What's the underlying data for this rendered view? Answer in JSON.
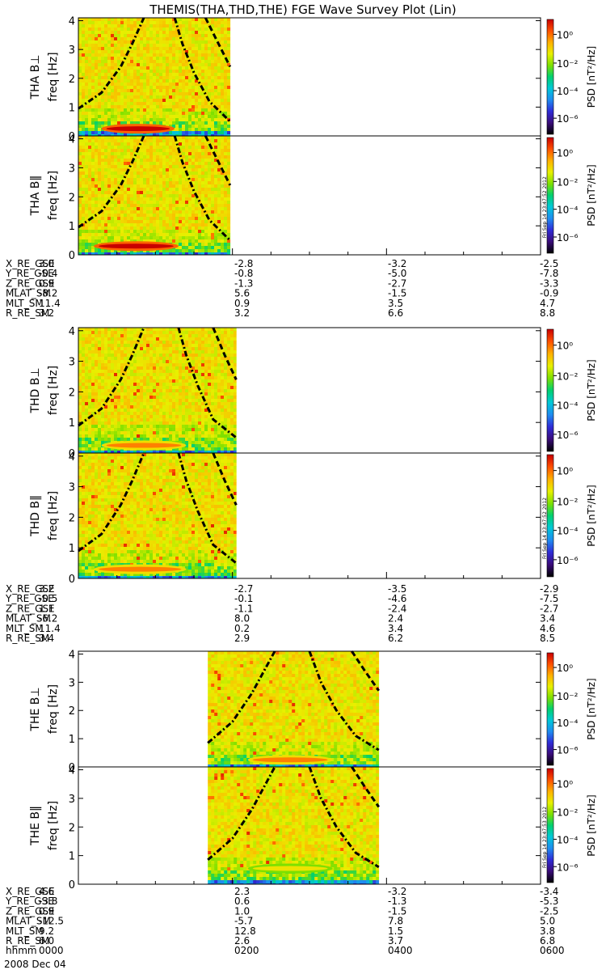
{
  "title": "THEMIS(THA,THD,THE) FGE Wave Survey Plot (Lin)",
  "colorbar": {
    "label": "PSD [nT²/Hz]",
    "ticks": [
      "10⁰",
      "10⁻²",
      "10⁻⁴",
      "10⁻⁶"
    ],
    "colors": [
      "#000000",
      "#3a0c7a",
      "#2f2bd6",
      "#1f8cf0",
      "#00c8d8",
      "#00d070",
      "#7ee000",
      "#e8f000",
      "#ffb000",
      "#ff5000",
      "#c80000"
    ],
    "stamps": [
      "Fri Sep 14 23:47:52 2012",
      "Fri Sep 14 23:47:52 2012",
      "Fri Sep 14 23:47:53 2012"
    ]
  },
  "panels": [
    {
      "label": "THA B⊥",
      "ylabel": "freq [Hz]",
      "yticks": [
        "0",
        "1",
        "2",
        "3",
        "4"
      ]
    },
    {
      "label": "THA B‖",
      "ylabel": "freq [Hz]",
      "yticks": [
        "0",
        "1",
        "2",
        "3",
        "4"
      ]
    },
    {
      "label": "THD B⊥",
      "ylabel": "freq [Hz]",
      "yticks": [
        "0",
        "1",
        "2",
        "3",
        "4"
      ]
    },
    {
      "label": "THD B‖",
      "ylabel": "freq [Hz]",
      "yticks": [
        "0",
        "1",
        "2",
        "3",
        "4"
      ]
    },
    {
      "label": "THE B⊥",
      "ylabel": "freq [Hz]",
      "yticks": [
        "0",
        "1",
        "2",
        "3",
        "4"
      ]
    },
    {
      "label": "THE B‖",
      "ylabel": "freq [Hz]",
      "yticks": [
        "0",
        "1",
        "2",
        "3",
        "4"
      ]
    }
  ],
  "orbit_blocks": [
    {
      "rows": [
        {
          "label": "X_RE_GSE",
          "values": [
            "3.0",
            "-2.8",
            "-3.2",
            "-2.5"
          ]
        },
        {
          "label": "Y_RE_GSE",
          "values": [
            "-0.4",
            "-0.8",
            "-5.0",
            "-7.8"
          ]
        },
        {
          "label": "Z_RE_GSE",
          "values": [
            "0.9",
            "-1.3",
            "-2.7",
            "-3.3"
          ]
        },
        {
          "label": "MLAT_SM",
          "values": [
            "-8.2",
            "5.6",
            "-1.5",
            "-0.9"
          ]
        },
        {
          "label": "MLT_SM",
          "values": [
            "11.4",
            "0.9",
            "3.5",
            "4.7"
          ]
        },
        {
          "label": "R_RE_SM",
          "values": [
            "3.2",
            "3.2",
            "6.6",
            "8.8"
          ]
        }
      ]
    },
    {
      "rows": [
        {
          "label": "X_RE_GSE",
          "values": [
            "3.2",
            "-2.7",
            "-3.5",
            "-2.9"
          ]
        },
        {
          "label": "Y_RE_GSE",
          "values": [
            "-0.5",
            "-0.1",
            "-4.6",
            "-7.5"
          ]
        },
        {
          "label": "Z_RE_GSE",
          "values": [
            "1.1",
            "-1.1",
            "-2.4",
            "-2.7"
          ]
        },
        {
          "label": "MLAT_SM",
          "values": [
            "-6.2",
            "8.0",
            "2.4",
            "3.4"
          ]
        },
        {
          "label": "MLT_SM",
          "values": [
            "11.4",
            "0.2",
            "3.4",
            "4.6"
          ]
        },
        {
          "label": "R_RE_SM",
          "values": [
            "3.4",
            "2.9",
            "6.2",
            "8.5"
          ]
        }
      ]
    },
    {
      "rows": [
        {
          "label": "X_RE_GSE",
          "values": [
            "4.6",
            "2.3",
            "-3.2",
            "-3.4"
          ]
        },
        {
          "label": "Y_RE_GSE",
          "values": [
            "-3.8",
            "0.6",
            "-1.3",
            "-5.3"
          ]
        },
        {
          "label": "Z_RE_GSE",
          "values": [
            "0.9",
            "1.0",
            "-1.5",
            "-2.5"
          ]
        },
        {
          "label": "MLAT_SM",
          "values": [
            "-12.5",
            "-5.7",
            "7.8",
            "5.0"
          ]
        },
        {
          "label": "MLT_SM",
          "values": [
            "9.2",
            "12.8",
            "1.5",
            "3.8"
          ]
        },
        {
          "label": "R_RE_SM",
          "values": [
            "6.0",
            "2.6",
            "3.7",
            "6.8"
          ]
        },
        {
          "label": "hhmm",
          "values": [
            "0000",
            "0200",
            "0400",
            "0600"
          ]
        }
      ]
    }
  ],
  "date_label": "2008 Dec 04",
  "chart_data": {
    "type": "heatmap",
    "title": "THEMIS(THA,THD,THE) FGE Wave Survey Plot (Lin)",
    "x_axis": {
      "label": "hhmm",
      "ticks": [
        "0000",
        "0200",
        "0400",
        "0600"
      ],
      "range_hours": [
        0,
        6
      ]
    },
    "y_axis": {
      "label": "freq [Hz]",
      "range": [
        0,
        4.1
      ],
      "ticks": [
        0,
        1,
        2,
        3,
        4
      ]
    },
    "colorbar": {
      "label": "PSD [nT²/Hz]",
      "scale": "log",
      "range": [
        1e-07,
        10
      ],
      "ticks": [
        1,
        0.01,
        0.0001,
        1e-06
      ]
    },
    "panels": [
      {
        "label": "THA B⊥",
        "data_start_hours": 0.0,
        "data_end_hours": 1.97,
        "curves": [
          {
            "style": "dash-dot",
            "points": [
              [
                0.0,
                0.95
              ],
              [
                0.3,
                1.5
              ],
              [
                0.55,
                2.4
              ],
              [
                0.7,
                3.2
              ],
              [
                0.85,
                4.1
              ]
            ]
          },
          {
            "style": "dash-dot",
            "points": [
              [
                1.25,
                4.1
              ],
              [
                1.35,
                3.2
              ],
              [
                1.5,
                2.2
              ],
              [
                1.7,
                1.2
              ],
              [
                1.97,
                0.5
              ]
            ]
          },
          {
            "style": "dash",
            "points": [
              [
                1.65,
                4.1
              ],
              [
                1.8,
                3.3
              ],
              [
                1.97,
                2.4
              ]
            ]
          }
        ],
        "bands": [
          {
            "freq": 0.25,
            "start_hours": 0.3,
            "end_hours": 1.25,
            "level": "high"
          }
        ]
      },
      {
        "label": "THA B‖",
        "data_start_hours": 0.0,
        "data_end_hours": 1.97,
        "curves": [
          {
            "style": "dash-dot",
            "points": [
              [
                0.0,
                0.95
              ],
              [
                0.3,
                1.5
              ],
              [
                0.55,
                2.4
              ],
              [
                0.7,
                3.2
              ],
              [
                0.85,
                4.1
              ]
            ]
          },
          {
            "style": "dash-dot",
            "points": [
              [
                1.25,
                4.1
              ],
              [
                1.35,
                3.2
              ],
              [
                1.5,
                2.2
              ],
              [
                1.7,
                1.2
              ],
              [
                1.97,
                0.5
              ]
            ]
          },
          {
            "style": "dash",
            "points": [
              [
                1.65,
                4.1
              ],
              [
                1.8,
                3.3
              ],
              [
                1.97,
                2.4
              ]
            ]
          }
        ],
        "bands": [
          {
            "freq": 0.3,
            "start_hours": 0.2,
            "end_hours": 1.3,
            "level": "high"
          }
        ]
      },
      {
        "label": "THD B⊥",
        "data_start_hours": 0.0,
        "data_end_hours": 2.05,
        "curves": [
          {
            "style": "dash-dot",
            "points": [
              [
                0.0,
                0.9
              ],
              [
                0.3,
                1.45
              ],
              [
                0.55,
                2.4
              ],
              [
                0.7,
                3.2
              ],
              [
                0.85,
                4.1
              ]
            ]
          },
          {
            "style": "dash-dot",
            "points": [
              [
                1.3,
                4.1
              ],
              [
                1.4,
                3.2
              ],
              [
                1.55,
                2.2
              ],
              [
                1.75,
                1.1
              ],
              [
                2.05,
                0.5
              ]
            ]
          },
          {
            "style": "dash",
            "points": [
              [
                1.75,
                4.1
              ],
              [
                1.9,
                3.2
              ],
              [
                2.05,
                2.4
              ]
            ]
          }
        ],
        "bands": [
          {
            "freq": 0.25,
            "start_hours": 0.3,
            "end_hours": 1.4,
            "level": "medium"
          }
        ]
      },
      {
        "label": "THD B‖",
        "data_start_hours": 0.0,
        "data_end_hours": 2.05,
        "curves": [
          {
            "style": "dash-dot",
            "points": [
              [
                0.0,
                0.9
              ],
              [
                0.3,
                1.45
              ],
              [
                0.55,
                2.4
              ],
              [
                0.7,
                3.2
              ],
              [
                0.85,
                4.1
              ]
            ]
          },
          {
            "style": "dash-dot",
            "points": [
              [
                1.3,
                4.1
              ],
              [
                1.4,
                3.2
              ],
              [
                1.55,
                2.2
              ],
              [
                1.75,
                1.1
              ],
              [
                2.05,
                0.5
              ]
            ]
          },
          {
            "style": "dash",
            "points": [
              [
                1.75,
                4.1
              ],
              [
                1.9,
                3.2
              ],
              [
                2.05,
                2.4
              ]
            ]
          }
        ],
        "bands": [
          {
            "freq": 0.3,
            "start_hours": 0.2,
            "end_hours": 1.4,
            "level": "medium"
          }
        ]
      },
      {
        "label": "THE B⊥",
        "data_start_hours": 1.68,
        "data_end_hours": 3.9,
        "curves": [
          {
            "style": "dash-dot",
            "points": [
              [
                1.68,
                0.85
              ],
              [
                2.0,
                1.6
              ],
              [
                2.25,
                2.6
              ],
              [
                2.45,
                3.6
              ],
              [
                2.55,
                4.1
              ]
            ]
          },
          {
            "style": "dash-dot",
            "points": [
              [
                3.0,
                4.1
              ],
              [
                3.15,
                3.0
              ],
              [
                3.35,
                2.0
              ],
              [
                3.6,
                1.1
              ],
              [
                3.9,
                0.6
              ]
            ]
          },
          {
            "style": "dash",
            "points": [
              [
                3.55,
                4.1
              ],
              [
                3.72,
                3.4
              ],
              [
                3.9,
                2.7
              ]
            ]
          }
        ],
        "bands": [
          {
            "freq": 0.25,
            "start_hours": 2.2,
            "end_hours": 3.3,
            "level": "medium"
          }
        ]
      },
      {
        "label": "THE B‖",
        "data_start_hours": 1.68,
        "data_end_hours": 3.9,
        "curves": [
          {
            "style": "dash-dot",
            "points": [
              [
                1.68,
                0.85
              ],
              [
                2.0,
                1.6
              ],
              [
                2.25,
                2.6
              ],
              [
                2.45,
                3.6
              ],
              [
                2.55,
                4.1
              ]
            ]
          },
          {
            "style": "dash-dot",
            "points": [
              [
                3.0,
                4.1
              ],
              [
                3.15,
                3.0
              ],
              [
                3.35,
                2.0
              ],
              [
                3.6,
                1.1
              ],
              [
                3.9,
                0.6
              ]
            ]
          },
          {
            "style": "dash",
            "points": [
              [
                3.55,
                4.1
              ],
              [
                3.72,
                3.4
              ],
              [
                3.9,
                2.7
              ]
            ]
          }
        ],
        "bands": [
          {
            "freq": 0.55,
            "start_hours": 2.2,
            "end_hours": 3.3,
            "level": "low"
          }
        ]
      }
    ]
  }
}
